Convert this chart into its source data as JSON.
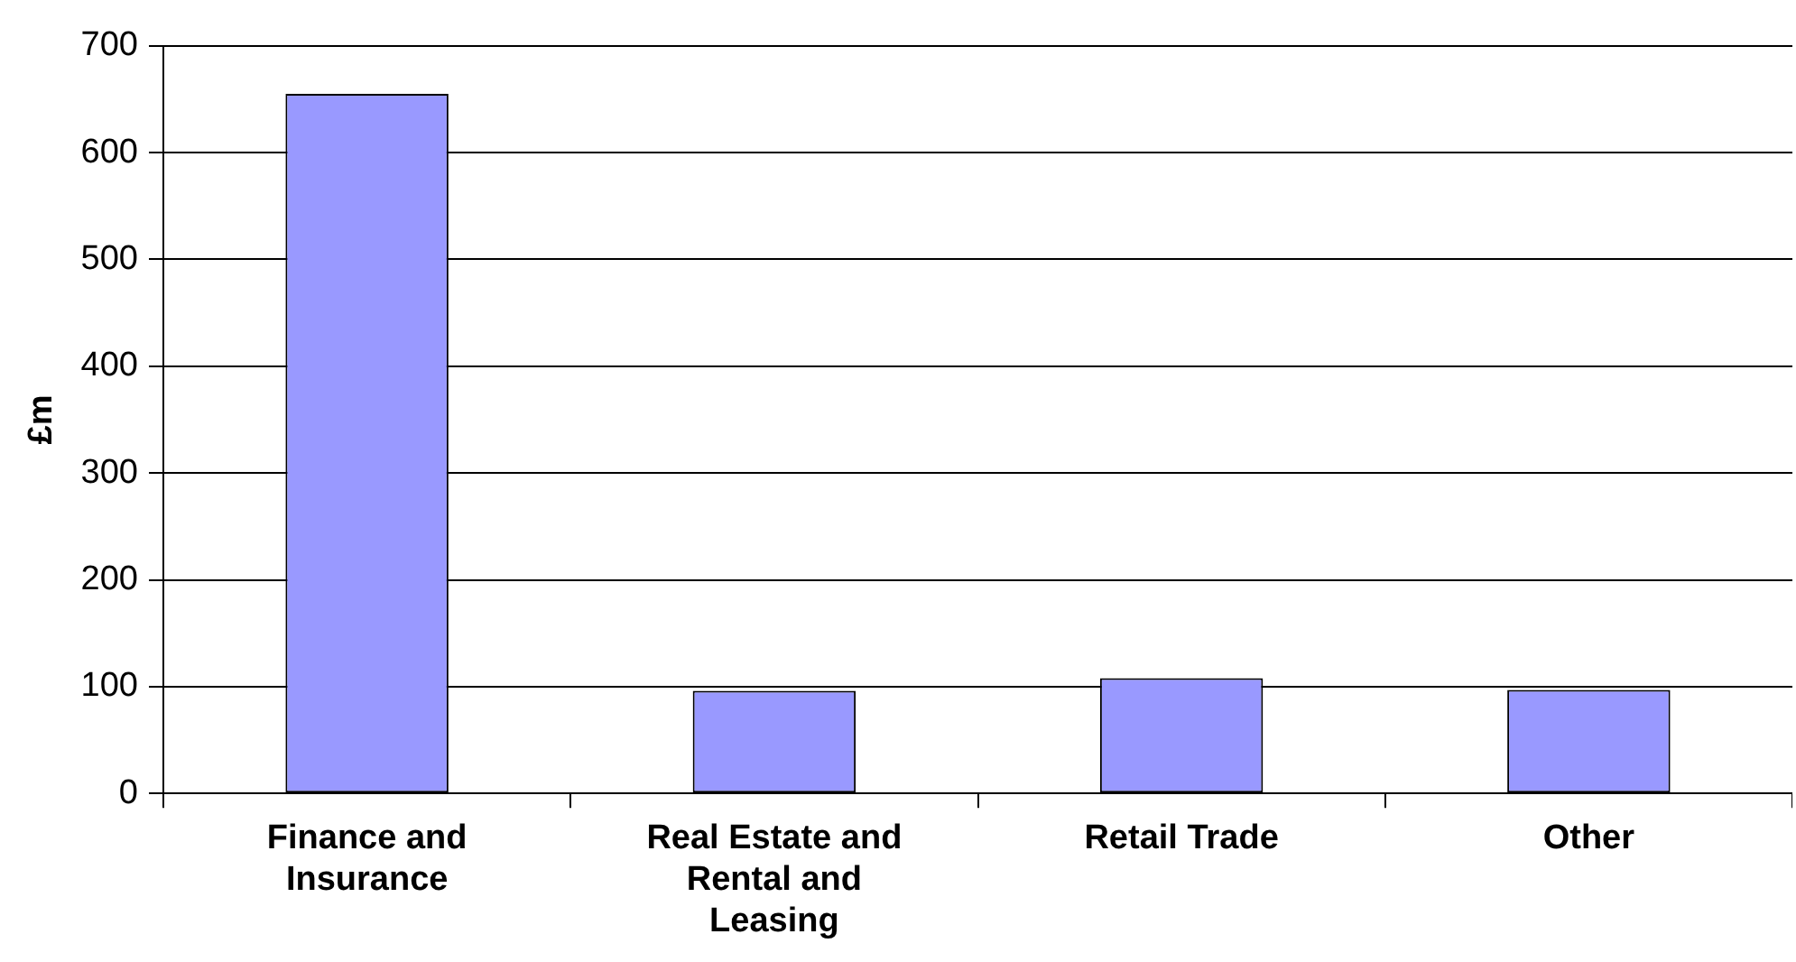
{
  "chart_data": {
    "type": "bar",
    "ylabel": "£m",
    "categories": [
      "Finance and Insurance",
      "Real Estate and Rental and Leasing",
      "Retail Trade",
      "Other"
    ],
    "values": [
      655,
      96,
      108,
      97
    ],
    "color": "#9999ff",
    "ylim": [
      0,
      700
    ],
    "yticks": [
      0,
      100,
      200,
      300,
      400,
      500,
      600,
      700
    ],
    "grid": "y",
    "legend": false
  }
}
